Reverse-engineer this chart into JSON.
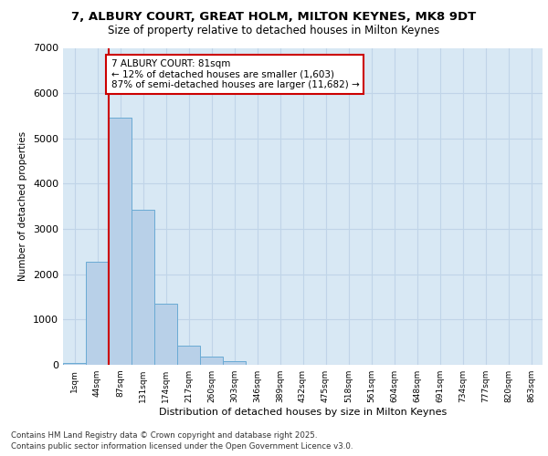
{
  "title_line1": "7, ALBURY COURT, GREAT HOLM, MILTON KEYNES, MK8 9DT",
  "title_line2": "Size of property relative to detached houses in Milton Keynes",
  "xlabel": "Distribution of detached houses by size in Milton Keynes",
  "ylabel": "Number of detached properties",
  "bar_color": "#b8d0e8",
  "bar_edge_color": "#6aaad4",
  "grid_color": "#c0d4e8",
  "background_color": "#d8e8f4",
  "annotation_text": "7 ALBURY COURT: 81sqm\n← 12% of detached houses are smaller (1,603)\n87% of semi-detached houses are larger (11,682) →",
  "annotation_box_color": "#ffffff",
  "annotation_box_edge": "#cc0000",
  "vline_color": "#cc0000",
  "vline_x": 1.5,
  "footer_line1": "Contains HM Land Registry data © Crown copyright and database right 2025.",
  "footer_line2": "Contains public sector information licensed under the Open Government Licence v3.0.",
  "categories": [
    "1sqm",
    "44sqm",
    "87sqm",
    "131sqm",
    "174sqm",
    "217sqm",
    "260sqm",
    "303sqm",
    "346sqm",
    "389sqm",
    "432sqm",
    "475sqm",
    "518sqm",
    "561sqm",
    "604sqm",
    "648sqm",
    "691sqm",
    "734sqm",
    "777sqm",
    "820sqm",
    "863sqm"
  ],
  "values": [
    50,
    2270,
    5450,
    3430,
    1340,
    420,
    180,
    90,
    0,
    0,
    0,
    0,
    0,
    0,
    0,
    0,
    0,
    0,
    0,
    0,
    0
  ],
  "ylim": [
    0,
    7000
  ],
  "yticks": [
    0,
    1000,
    2000,
    3000,
    4000,
    5000,
    6000,
    7000
  ]
}
